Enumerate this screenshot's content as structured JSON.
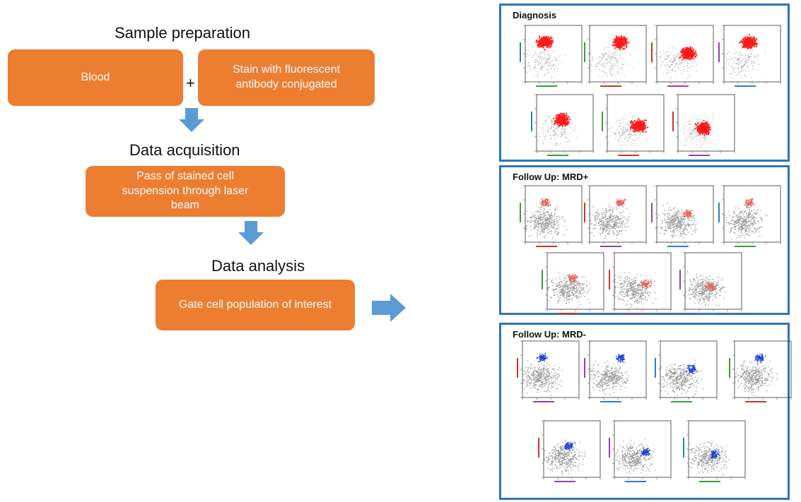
{
  "workflow": {
    "sample_prep": {
      "heading": "Sample preparation",
      "box1": "Blood",
      "plus": "+",
      "box2": "Stain with fluorescent antibody conjugated"
    },
    "acquisition": {
      "heading": "Data acquisition",
      "box": "Pass of stained cell suspension through laser beam"
    },
    "analysis": {
      "heading": "Data analysis",
      "box": "Gate cell population of interest"
    }
  },
  "panels": [
    {
      "title": "Diagnosis",
      "highlight": "#ff1a1a"
    },
    {
      "title": "Follow Up: MRD+",
      "highlight": "#e06666"
    },
    {
      "title": "Follow Up: MRD-",
      "highlight": "#1f3fd6"
    }
  ],
  "colors": {
    "box": "#ED7D31",
    "arrow": "#5B9BD5",
    "panel_border": "#2E75B6",
    "background_events": "#8c8c8c"
  }
}
